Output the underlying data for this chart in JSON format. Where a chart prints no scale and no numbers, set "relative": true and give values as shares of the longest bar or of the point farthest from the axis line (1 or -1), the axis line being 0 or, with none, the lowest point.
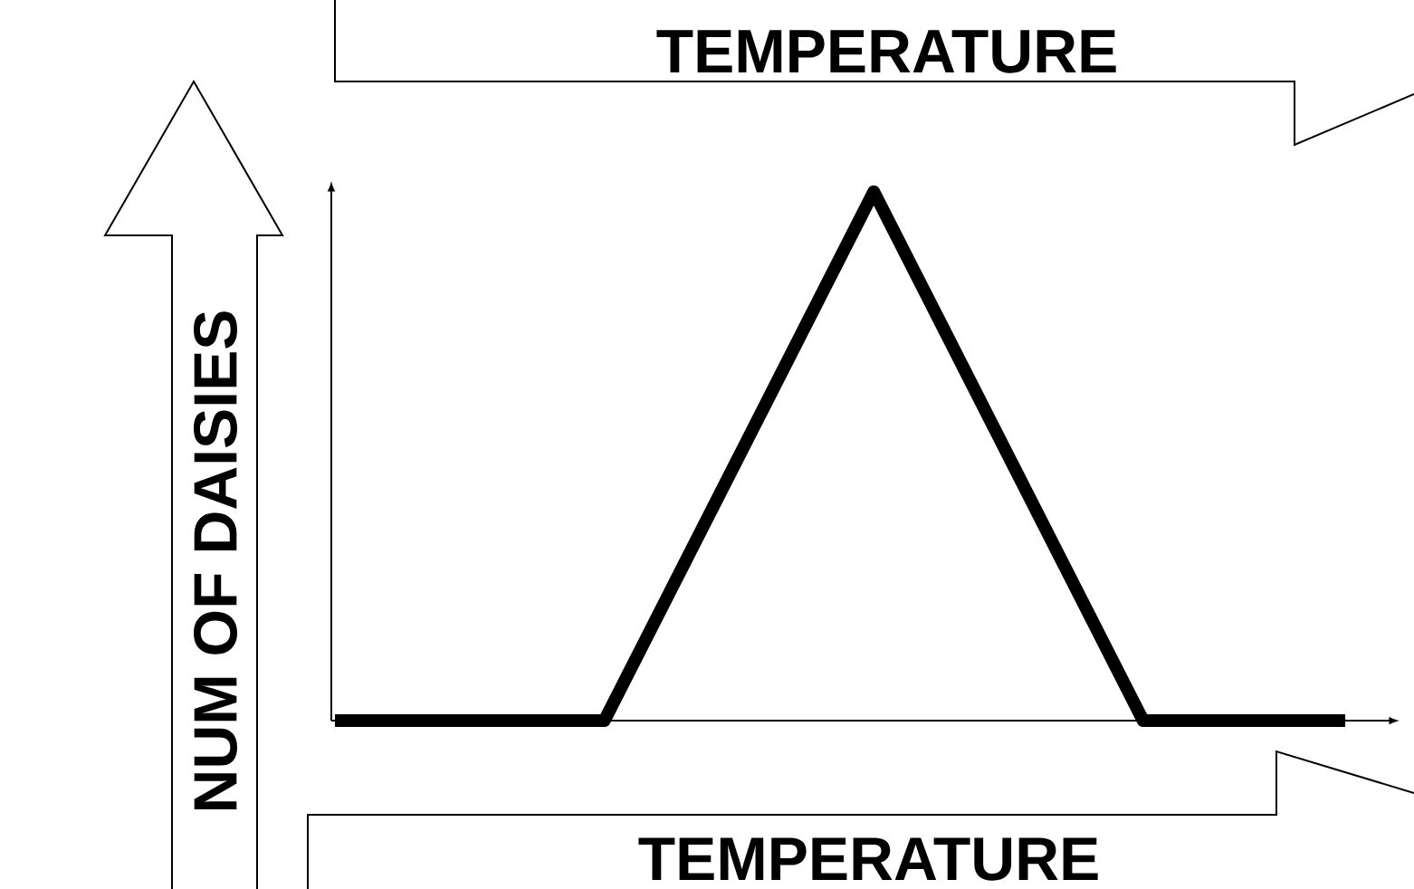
{
  "chart_data": {
    "type": "line",
    "title": "TEMPERATURE",
    "xlabel": "TEMPERATURE",
    "ylabel": "NUM OF DAISIES",
    "categories": [
      null,
      null,
      null,
      null,
      null,
      null,
      null,
      null,
      null,
      null,
      null,
      null,
      null,
      null,
      null,
      null
    ],
    "values": [
      0,
      0,
      0,
      0,
      0,
      0.25,
      0.5,
      0.75,
      1,
      0.75,
      0.5,
      0.25,
      0,
      0,
      0,
      0
    ],
    "relative": true,
    "color": "#000000"
  }
}
